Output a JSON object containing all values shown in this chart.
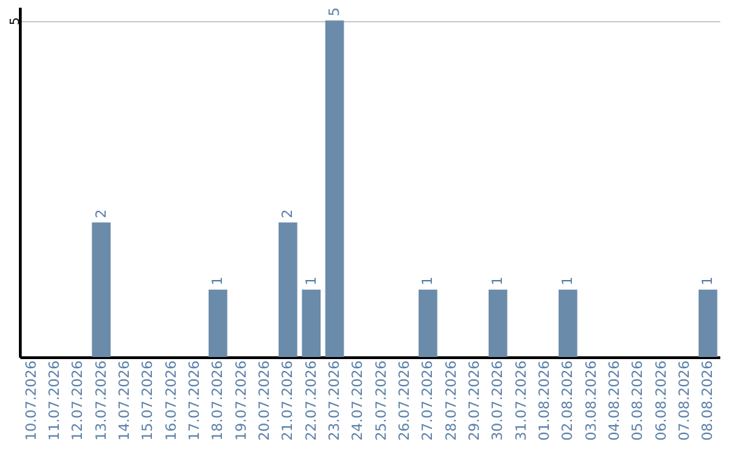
{
  "chart_data": {
    "type": "bar",
    "categories": [
      "10.07.2026",
      "11.07.2026",
      "12.07.2026",
      "13.07.2026",
      "14.07.2026",
      "15.07.2026",
      "16.07.2026",
      "17.07.2026",
      "18.07.2026",
      "19.07.2026",
      "20.07.2026",
      "21.07.2026",
      "22.07.2026",
      "23.07.2026",
      "24.07.2026",
      "25.07.2026",
      "26.07.2026",
      "27.07.2026",
      "28.07.2026",
      "29.07.2026",
      "30.07.2026",
      "31.07.2026",
      "01.08.2026",
      "02.08.2026",
      "03.08.2026",
      "04.08.2026",
      "05.08.2026",
      "06.08.2026",
      "07.08.2026",
      "08.08.2026"
    ],
    "values": [
      0,
      0,
      0,
      2,
      0,
      0,
      0,
      0,
      1,
      0,
      0,
      2,
      1,
      5,
      0,
      0,
      0,
      1,
      0,
      0,
      1,
      0,
      0,
      1,
      0,
      0,
      0,
      0,
      0,
      1
    ],
    "value_labels": [
      null,
      null,
      null,
      "2",
      null,
      null,
      null,
      null,
      "1",
      null,
      null,
      "2",
      "1",
      "5",
      null,
      null,
      null,
      "1",
      null,
      null,
      "1",
      null,
      null,
      "1",
      null,
      null,
      null,
      null,
      null,
      "1"
    ],
    "color": "#6b8bab",
    "ylim": [
      0,
      5.2
    ],
    "yticks": [
      5
    ],
    "grid": "y"
  }
}
